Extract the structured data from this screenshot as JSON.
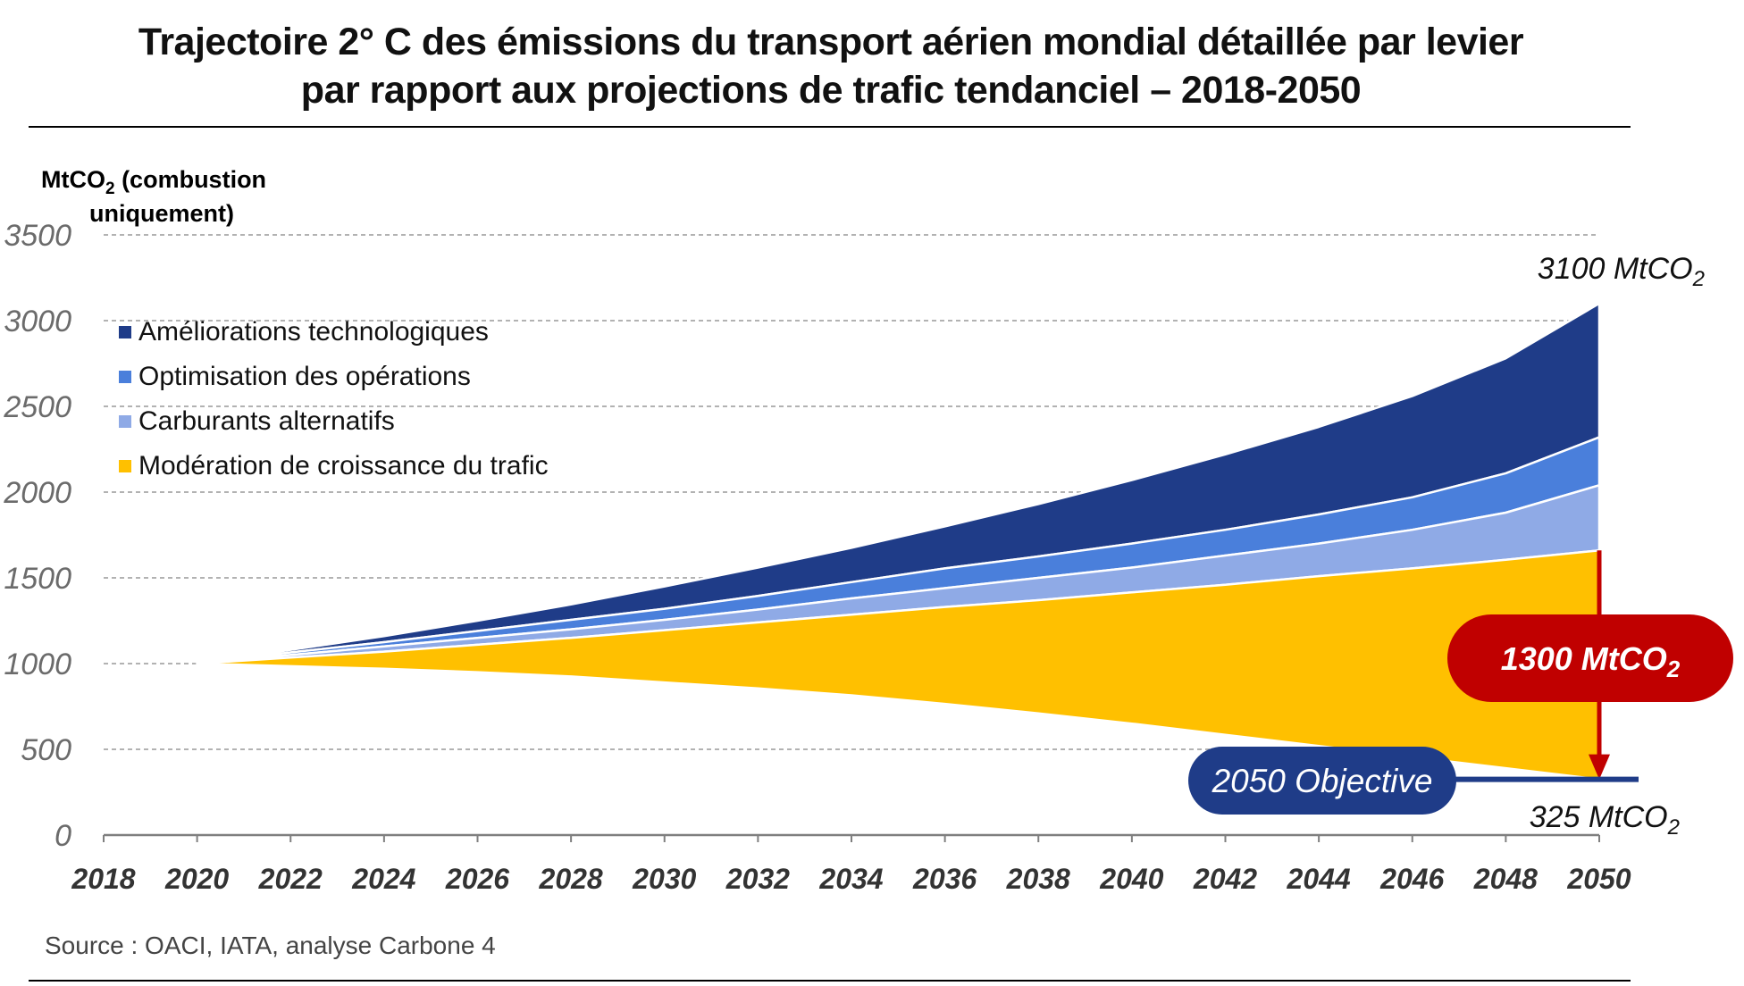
{
  "title_line1": "Trajectoire 2° C des émissions du transport aérien mondial détaillée par levier",
  "title_line2": "par rapport aux projections de trafic tendanciel – 2018-2050",
  "source": "Source : OACI, IATA, analyse Carbone 4",
  "colors": {
    "technologie": "#1f3c88",
    "operations": "#4a7fdb",
    "carburants": "#8faae6",
    "trafic": "#ffc000",
    "callout": "#c00000",
    "objective": "#1f3c88",
    "grid": "#999999"
  },
  "chart_data": {
    "type": "area",
    "ylabel_main": "MtCO",
    "ylabel_sub": "2",
    "ylabel_rest": " (combustion",
    "ylabel_line2": "uniquement)",
    "ylim": [
      0,
      3500
    ],
    "yticks": [
      "0",
      "500",
      "1000",
      "1500",
      "2000",
      "2500",
      "3000",
      "3500"
    ],
    "xlim": [
      2018,
      2050
    ],
    "xticks": [
      "2018",
      "2020",
      "2022",
      "2024",
      "2026",
      "2028",
      "2030",
      "2032",
      "2034",
      "2036",
      "2038",
      "2040",
      "2042",
      "2044",
      "2046",
      "2048",
      "2050"
    ],
    "grid": true,
    "legend_position": "top-left",
    "x": [
      2020,
      2022,
      2024,
      2026,
      2028,
      2030,
      2032,
      2034,
      2036,
      2038,
      2040,
      2042,
      2044,
      2046,
      2048,
      2050
    ],
    "boundaries": {
      "objective": [
        1000,
        985,
        970,
        950,
        925,
        890,
        855,
        815,
        765,
        710,
        650,
        585,
        520,
        455,
        390,
        325
      ],
      "trafic_top": [
        1000,
        1035,
        1070,
        1110,
        1150,
        1195,
        1240,
        1285,
        1330,
        1370,
        1415,
        1460,
        1510,
        1555,
        1605,
        1660
      ],
      "carburants_top": [
        1000,
        1050,
        1100,
        1150,
        1200,
        1255,
        1315,
        1380,
        1440,
        1500,
        1560,
        1630,
        1700,
        1780,
        1880,
        2040
      ],
      "operations_top": [
        1000,
        1065,
        1125,
        1190,
        1255,
        1320,
        1395,
        1475,
        1555,
        1625,
        1700,
        1780,
        1870,
        1970,
        2110,
        2320
      ],
      "technologie_top": [
        1000,
        1080,
        1160,
        1250,
        1345,
        1450,
        1560,
        1675,
        1800,
        1930,
        2070,
        2220,
        2380,
        2560,
        2780,
        3100
      ]
    },
    "series": [
      {
        "key": "technologie",
        "name": "Améliorations technologiques"
      },
      {
        "key": "operations",
        "name": "Optimisation des opérations"
      },
      {
        "key": "carburants",
        "name": "Carburants alternatifs"
      },
      {
        "key": "trafic",
        "name": "Modération de croissance du trafic"
      }
    ],
    "annotations": {
      "top_value": "3100 MtCO",
      "top_value_sub": "2",
      "reduction": "1300 MtCO",
      "reduction_sub": "2",
      "objective_label": "2050 Objective",
      "bottom_value": "325 MtCO",
      "bottom_value_sub": "2"
    }
  }
}
